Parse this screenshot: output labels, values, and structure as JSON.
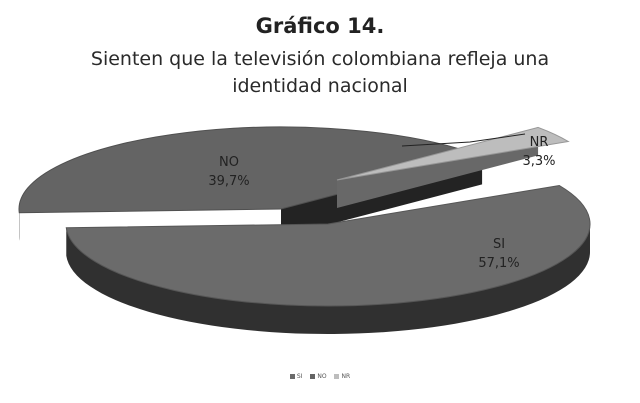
{
  "chart_data": {
    "type": "pie",
    "title": "Gráfico 14.",
    "subtitle": "Sienten que la televisión colombiana refleja una identidad nacional",
    "slices": [
      {
        "name": "SI",
        "value": 57.1,
        "label": "57,1%",
        "color": "#6b6b6b"
      },
      {
        "name": "NO",
        "value": 39.7,
        "label": "39,7%",
        "color": "#646464"
      },
      {
        "name": "NR",
        "value": 3.3,
        "label": "3,3%",
        "color": "#bdbdbd"
      }
    ],
    "legend": {
      "position": "bottom",
      "entries": [
        "SI",
        "NO",
        "NR"
      ]
    },
    "three_d": true,
    "exploded": true
  }
}
